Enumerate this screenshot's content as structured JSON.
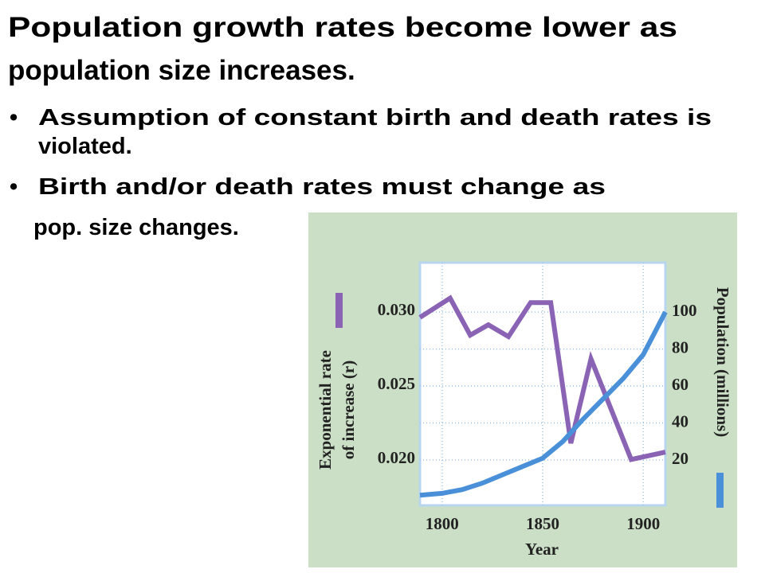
{
  "title": [
    "Population growth rates become lower as",
    "population size increases."
  ],
  "bullets": [
    [
      "Assumption of constant birth and death rates is",
      "violated."
    ],
    [
      "Birth and/or death rates must change as",
      "pop. size changes."
    ]
  ],
  "chart_data": {
    "type": "line",
    "x_label": "Year",
    "y_label": [
      "Exponential rate",
      "of increase (r)"
    ],
    "y2_label": "Population (millions)",
    "xlim": [
      1789,
      1911
    ],
    "xticks": [
      1800,
      1850,
      1900
    ],
    "ylim": [
      0.0169,
      0.0333
    ],
    "yticks": [
      {
        "value": 0.03,
        "label": "0.030"
      },
      {
        "value": 0.025,
        "label": "0.025"
      },
      {
        "value": 0.02,
        "label": "0.020"
      }
    ],
    "y2lim": [
      -4.5,
      126.7
    ],
    "y2ticks": [
      20,
      40,
      60,
      80,
      100
    ],
    "grid": true,
    "series": [
      {
        "color": "#8a63b5",
        "x": [
          1789,
          1804,
          1814,
          1823,
          1833,
          1844,
          1854,
          1864,
          1874,
          1894,
          1911
        ],
        "values": [
          0.0296,
          0.0309,
          0.0284,
          0.0291,
          0.0283,
          0.0306,
          0.0306,
          0.0211,
          0.0268,
          0.02,
          0.0205
        ]
      },
      {
        "color": "#4a90d9",
        "axis": "y2",
        "x": [
          1789,
          1800,
          1810,
          1820,
          1830,
          1840,
          1850,
          1860,
          1870,
          1880,
          1890,
          1900,
          1911
        ],
        "values": [
          1,
          2,
          4,
          7.5,
          12,
          16.5,
          21,
          30,
          42,
          53,
          64,
          77,
          100
        ]
      }
    ]
  }
}
